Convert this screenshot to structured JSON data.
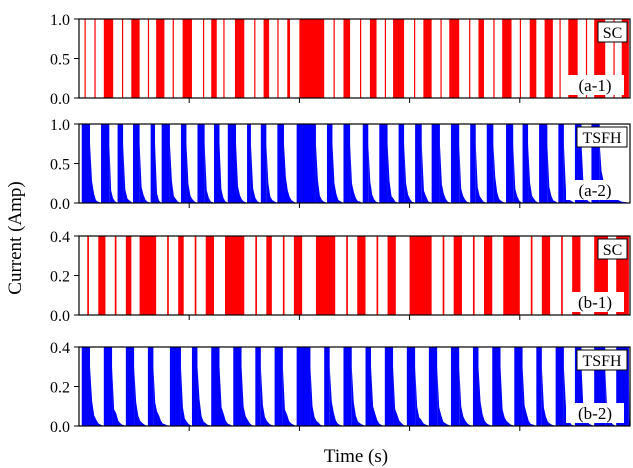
{
  "figure": {
    "ylabel": "Current (Amp)",
    "xlabel": "Time (s)"
  },
  "colors": {
    "sc": "#ff0000",
    "tsfh": "#0000ff"
  },
  "chart_data": [
    {
      "type": "bar",
      "legend": "SC",
      "panel_label": "(a-1)",
      "color": "#ff0000",
      "ylim": [
        0,
        1.0
      ],
      "yticks": [
        "0.0",
        "0.5",
        "1.0"
      ],
      "xlabel": "",
      "ylabel": "",
      "x_ticks": 5,
      "description": "on/off square pulses at 1.0 A",
      "segments": [
        [
          0.01,
          0.012
        ],
        [
          0.028,
          0.03
        ],
        [
          0.045,
          0.062
        ],
        [
          0.078,
          0.08
        ],
        [
          0.095,
          0.11
        ],
        [
          0.125,
          0.127
        ],
        [
          0.14,
          0.155
        ],
        [
          0.17,
          0.172
        ],
        [
          0.188,
          0.205
        ],
        [
          0.225,
          0.227
        ],
        [
          0.24,
          0.25
        ],
        [
          0.262,
          0.264
        ],
        [
          0.283,
          0.3
        ],
        [
          0.318,
          0.32
        ],
        [
          0.335,
          0.345
        ],
        [
          0.36,
          0.362
        ],
        [
          0.378,
          0.383
        ],
        [
          0.4,
          0.445
        ],
        [
          0.462,
          0.464
        ],
        [
          0.48,
          0.492
        ],
        [
          0.51,
          0.512
        ],
        [
          0.528,
          0.54
        ],
        [
          0.555,
          0.557
        ],
        [
          0.57,
          0.59
        ],
        [
          0.608,
          0.61
        ],
        [
          0.625,
          0.64
        ],
        [
          0.656,
          0.658
        ],
        [
          0.672,
          0.69
        ],
        [
          0.708,
          0.71
        ],
        [
          0.725,
          0.735
        ],
        [
          0.752,
          0.754
        ],
        [
          0.768,
          0.785
        ],
        [
          0.8,
          0.802
        ],
        [
          0.818,
          0.83
        ],
        [
          0.845,
          0.86
        ],
        [
          0.872,
          0.874
        ],
        [
          0.888,
          0.905
        ],
        [
          0.92,
          0.922
        ],
        [
          0.935,
          0.955
        ],
        [
          0.97,
          0.972
        ],
        [
          0.985,
          0.998
        ]
      ]
    },
    {
      "type": "bar",
      "legend": "TSFH",
      "panel_label": "(a-2)",
      "color": "#0000ff",
      "ylim": [
        0,
        1.0
      ],
      "yticks": [
        "0.0",
        "0.5",
        "1.0"
      ],
      "xlabel": "",
      "ylabel": "",
      "x_ticks": 5,
      "description": "pulses with decaying tails, peak 1.0 A",
      "segments": [
        [
          0.005,
          0.02
        ],
        [
          0.04,
          0.055
        ],
        [
          0.07,
          0.08
        ],
        [
          0.098,
          0.11
        ],
        [
          0.13,
          0.138
        ],
        [
          0.15,
          0.165
        ],
        [
          0.185,
          0.195
        ],
        [
          0.215,
          0.228
        ],
        [
          0.245,
          0.255
        ],
        [
          0.27,
          0.285
        ],
        [
          0.305,
          0.312
        ],
        [
          0.33,
          0.34
        ],
        [
          0.36,
          0.372
        ],
        [
          0.395,
          0.43
        ],
        [
          0.45,
          0.46
        ],
        [
          0.48,
          0.492
        ],
        [
          0.515,
          0.525
        ],
        [
          0.545,
          0.56
        ],
        [
          0.58,
          0.59
        ],
        [
          0.61,
          0.622
        ],
        [
          0.64,
          0.655
        ],
        [
          0.675,
          0.69
        ],
        [
          0.71,
          0.72
        ],
        [
          0.74,
          0.752
        ],
        [
          0.775,
          0.788
        ],
        [
          0.805,
          0.815
        ],
        [
          0.835,
          0.85
        ],
        [
          0.87,
          0.88
        ],
        [
          0.9,
          0.912
        ],
        [
          0.93,
          0.945
        ]
      ]
    },
    {
      "type": "bar",
      "legend": "SC",
      "panel_label": "(b-1)",
      "color": "#ff0000",
      "ylim": [
        0,
        0.4
      ],
      "yticks": [
        "0.0",
        "0.2",
        "0.4"
      ],
      "xlabel": "",
      "ylabel": "",
      "x_ticks": 5,
      "description": "on/off square pulses at 0.4 A",
      "segments": [
        [
          0.015,
          0.018
        ],
        [
          0.035,
          0.048
        ],
        [
          0.065,
          0.068
        ],
        [
          0.085,
          0.095
        ],
        [
          0.11,
          0.14
        ],
        [
          0.16,
          0.163
        ],
        [
          0.18,
          0.19
        ],
        [
          0.21,
          0.213
        ],
        [
          0.23,
          0.245
        ],
        [
          0.265,
          0.3
        ],
        [
          0.32,
          0.323
        ],
        [
          0.34,
          0.35
        ],
        [
          0.37,
          0.373
        ],
        [
          0.39,
          0.405
        ],
        [
          0.43,
          0.465
        ],
        [
          0.485,
          0.488
        ],
        [
          0.505,
          0.52
        ],
        [
          0.54,
          0.543
        ],
        [
          0.56,
          0.575
        ],
        [
          0.6,
          0.64
        ],
        [
          0.66,
          0.663
        ],
        [
          0.68,
          0.695
        ],
        [
          0.715,
          0.718
        ],
        [
          0.735,
          0.75
        ],
        [
          0.77,
          0.8
        ],
        [
          0.82,
          0.823
        ],
        [
          0.84,
          0.855
        ],
        [
          0.875,
          0.878
        ],
        [
          0.895,
          0.91
        ],
        [
          0.935,
          0.96
        ],
        [
          0.975,
          0.998
        ]
      ]
    },
    {
      "type": "bar",
      "legend": "TSFH",
      "panel_label": "(b-2)",
      "color": "#0000ff",
      "ylim": [
        0,
        0.4
      ],
      "yticks": [
        "0.0",
        "0.2",
        "0.4"
      ],
      "xlabel": "Time (s)",
      "ylabel": "",
      "x_ticks": 5,
      "description": "pulses with decaying tails, peak 0.4 A",
      "segments": [
        [
          0.005,
          0.02
        ],
        [
          0.045,
          0.06
        ],
        [
          0.085,
          0.1
        ],
        [
          0.125,
          0.135
        ],
        [
          0.165,
          0.185
        ],
        [
          0.205,
          0.215
        ],
        [
          0.24,
          0.255
        ],
        [
          0.28,
          0.295
        ],
        [
          0.32,
          0.33
        ],
        [
          0.355,
          0.37
        ],
        [
          0.395,
          0.42
        ],
        [
          0.445,
          0.455
        ],
        [
          0.48,
          0.495
        ],
        [
          0.52,
          0.53
        ],
        [
          0.555,
          0.57
        ],
        [
          0.595,
          0.61
        ],
        [
          0.635,
          0.65
        ],
        [
          0.675,
          0.69
        ],
        [
          0.715,
          0.725
        ],
        [
          0.75,
          0.765
        ],
        [
          0.79,
          0.805
        ],
        [
          0.83,
          0.84
        ],
        [
          0.865,
          0.88
        ],
        [
          0.9,
          0.912
        ],
        [
          0.935,
          0.955
        ],
        [
          0.975,
          0.998
        ]
      ]
    }
  ]
}
